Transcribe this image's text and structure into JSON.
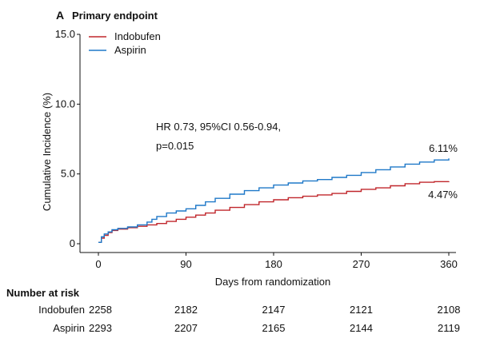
{
  "chart_data": {
    "type": "line",
    "panel_letter": "A",
    "title": "Primary endpoint",
    "xlabel": "Days from randomization",
    "ylabel": "Cumulative Incidence (%)",
    "xlim": [
      0,
      360
    ],
    "ylim": [
      0,
      15
    ],
    "x_ticks": [
      0,
      90,
      180,
      270,
      360
    ],
    "y_ticks": [
      0,
      5.0,
      10.0,
      15.0
    ],
    "y_tick_labels": [
      "0",
      "5.0",
      "10.0",
      "15.0"
    ],
    "grid": false,
    "legend_position": "top-left",
    "colors": {
      "Indobufen": "#c0262b",
      "Aspirin": "#1f78c8"
    },
    "series": [
      {
        "name": "Indobufen",
        "x": [
          0,
          3,
          6,
          10,
          14,
          20,
          30,
          40,
          50,
          60,
          70,
          80,
          90,
          100,
          110,
          120,
          135,
          150,
          165,
          180,
          195,
          210,
          225,
          240,
          255,
          270,
          285,
          300,
          315,
          330,
          345,
          360
        ],
        "values": [
          0.1,
          0.4,
          0.6,
          0.8,
          0.95,
          1.05,
          1.15,
          1.25,
          1.35,
          1.45,
          1.6,
          1.75,
          1.9,
          2.05,
          2.2,
          2.4,
          2.6,
          2.8,
          3.0,
          3.15,
          3.3,
          3.4,
          3.5,
          3.6,
          3.75,
          3.9,
          4.0,
          4.15,
          4.3,
          4.4,
          4.45,
          4.47
        ]
      },
      {
        "name": "Aspirin",
        "x": [
          0,
          3,
          6,
          10,
          14,
          20,
          30,
          40,
          50,
          55,
          60,
          70,
          80,
          90,
          100,
          110,
          120,
          135,
          150,
          165,
          180,
          195,
          210,
          225,
          240,
          255,
          270,
          285,
          300,
          315,
          330,
          345,
          360
        ],
        "values": [
          0.1,
          0.5,
          0.7,
          0.85,
          1.0,
          1.1,
          1.2,
          1.35,
          1.55,
          1.75,
          1.95,
          2.2,
          2.35,
          2.5,
          2.75,
          3.0,
          3.25,
          3.55,
          3.8,
          4.0,
          4.2,
          4.35,
          4.5,
          4.6,
          4.75,
          4.9,
          5.1,
          5.3,
          5.5,
          5.7,
          5.85,
          6.0,
          6.11
        ]
      }
    ],
    "annotations": {
      "hr_line1": "HR 0.73, 95%CI 0.56-0.94,",
      "hr_line2": "p=0.015",
      "aspirin_end_label": "6.11%",
      "indobufen_end_label": "4.47%"
    },
    "risk_table": {
      "title": "Number at risk",
      "rows": [
        {
          "label": "Indobufen",
          "values": [
            "2258",
            "2182",
            "2147",
            "2121",
            "2108"
          ]
        },
        {
          "label": "Aspirin",
          "values": [
            "2293",
            "2207",
            "2165",
            "2144",
            "2119"
          ]
        }
      ]
    }
  }
}
